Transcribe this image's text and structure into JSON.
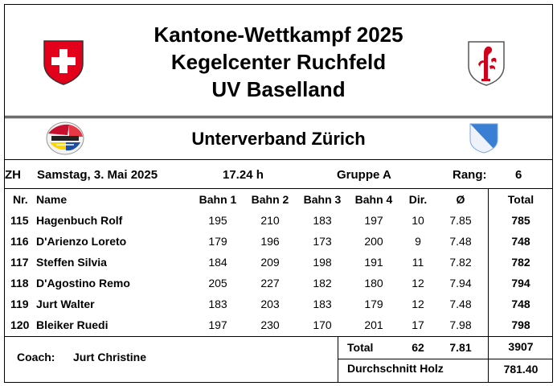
{
  "header": {
    "title_line1": "Kantone-Wettkampf 2025",
    "title_line2": "Kegelcenter Ruchfeld",
    "title_line3": "UV Baselland"
  },
  "team": {
    "name": "Unterverband Zürich",
    "code": "ZH",
    "date": "Samstag, 3. Mai 2025",
    "time": "17.24 h",
    "group": "Gruppe A",
    "rank_label": "Rang:",
    "rank": "6"
  },
  "columns": [
    "Nr.",
    "Name",
    "Bahn 1",
    "Bahn 2",
    "Bahn 3",
    "Bahn 4",
    "Dir.",
    "Ø",
    "Total"
  ],
  "rows": [
    {
      "nr": "115",
      "name": "Hagenbuch Rolf",
      "b1": "195",
      "b2": "210",
      "b3": "183",
      "b4": "197",
      "dir": "10",
      "avg": "7.85",
      "total": "785"
    },
    {
      "nr": "116",
      "name": "D'Arienzo Loreto",
      "b1": "179",
      "b2": "196",
      "b3": "173",
      "b4": "200",
      "dir": "9",
      "avg": "7.48",
      "total": "748"
    },
    {
      "nr": "117",
      "name": "Steffen Silvia",
      "b1": "184",
      "b2": "209",
      "b3": "198",
      "b4": "191",
      "dir": "11",
      "avg": "7.82",
      "total": "782"
    },
    {
      "nr": "118",
      "name": "D'Agostino Remo",
      "b1": "205",
      "b2": "227",
      "b3": "182",
      "b4": "180",
      "dir": "12",
      "avg": "7.94",
      "total": "794"
    },
    {
      "nr": "119",
      "name": "Jurt Walter",
      "b1": "183",
      "b2": "203",
      "b3": "183",
      "b4": "179",
      "dir": "12",
      "avg": "7.48",
      "total": "748"
    },
    {
      "nr": "120",
      "name": "Bleiker Ruedi",
      "b1": "197",
      "b2": "230",
      "b3": "170",
      "b4": "201",
      "dir": "17",
      "avg": "7.98",
      "total": "798"
    }
  ],
  "summary": {
    "coach_label": "Coach:",
    "coach_name": "Jurt Christine",
    "total_label": "Total",
    "total_dir": "62",
    "total_avg": "7.81",
    "total_sum": "3907",
    "avg_label": "Durchschnitt Holz",
    "avg_value": "781.40"
  },
  "colors": {
    "swiss_red": "#e2001a",
    "basel_red": "#d0021b",
    "zurich_blue": "#3b7fd4"
  },
  "icons": [
    "swiss-cross-crest-icon",
    "basel-land-crest-icon",
    "club-logo-icon",
    "zurich-crest-icon"
  ]
}
